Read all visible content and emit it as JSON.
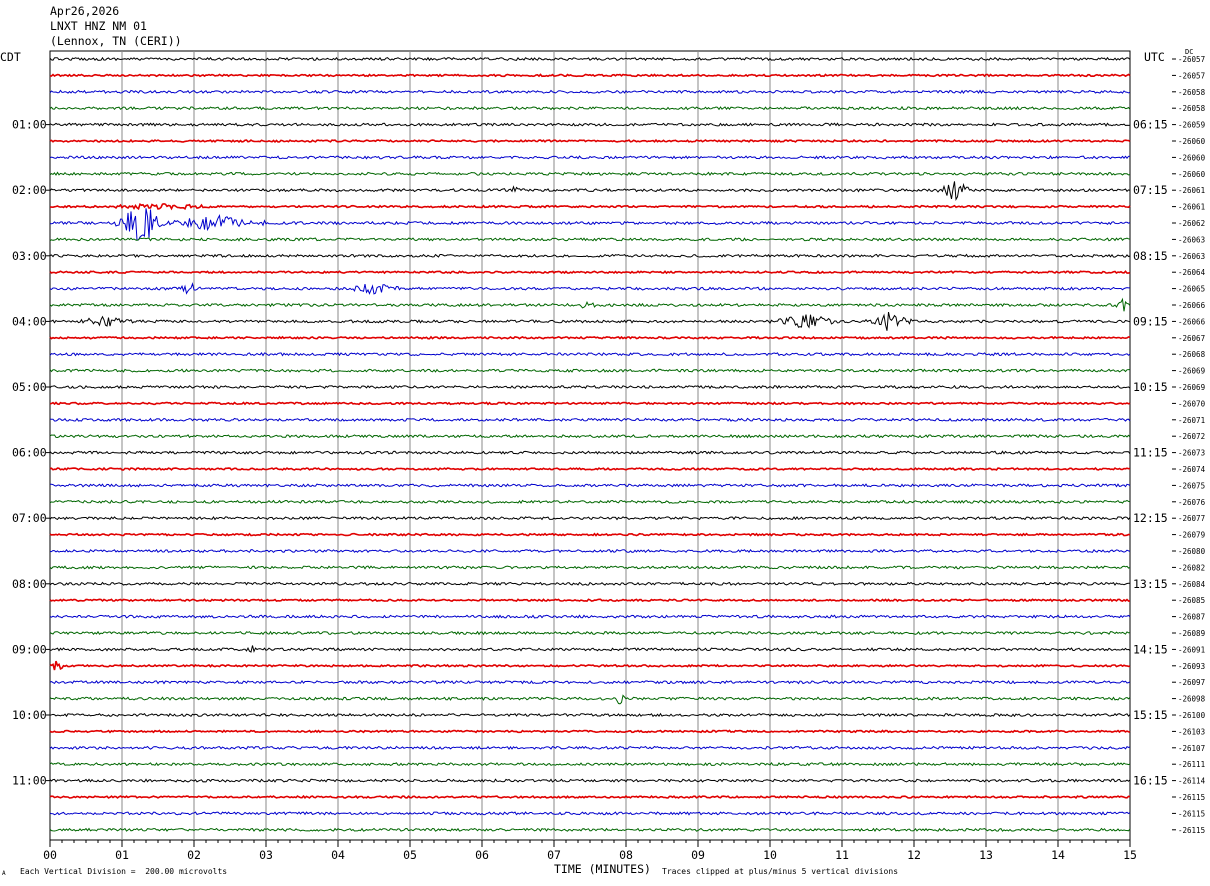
{
  "header": {
    "date": "Apr26,2026",
    "station": "LNXT HNZ NM 01",
    "location": "(Lennox, TN (CERI))"
  },
  "left_axis_label": "CDT",
  "right_axis_label": "UTC",
  "dc_label": "DC",
  "footer": {
    "scale_note": "Each Vertical Division =  200.00 microvolts",
    "clip_note": "Traces clipped at plus/minus 5 vertical divisions",
    "xlabel": "TIME (MINUTES)",
    "corner_mark": "A"
  },
  "colors": {
    "trace_cycle": [
      "#000000",
      "#e00000",
      "#0000cc",
      "#006600"
    ],
    "grid": "#000000",
    "background": "#ffffff"
  },
  "chart_data": {
    "type": "line",
    "title": "LNXT HNZ NM 01",
    "xlabel": "TIME (MINUTES)",
    "xlim": [
      0,
      15
    ],
    "x_ticks": [
      "00",
      "01",
      "02",
      "03",
      "04",
      "05",
      "06",
      "07",
      "08",
      "09",
      "10",
      "11",
      "12",
      "13",
      "14",
      "15"
    ],
    "rows": 48,
    "cdt_labels": [
      {
        "row": 4,
        "text": "01:00"
      },
      {
        "row": 8,
        "text": "02:00"
      },
      {
        "row": 12,
        "text": "03:00"
      },
      {
        "row": 16,
        "text": "04:00"
      },
      {
        "row": 20,
        "text": "05:00"
      },
      {
        "row": 24,
        "text": "06:00"
      },
      {
        "row": 28,
        "text": "07:00"
      },
      {
        "row": 32,
        "text": "08:00"
      },
      {
        "row": 36,
        "text": "09:00"
      },
      {
        "row": 40,
        "text": "10:00"
      },
      {
        "row": 44,
        "text": "11:00"
      }
    ],
    "utc_labels": [
      {
        "row": 4,
        "text": "06:15"
      },
      {
        "row": 8,
        "text": "07:15"
      },
      {
        "row": 12,
        "text": "08:15"
      },
      {
        "row": 16,
        "text": "09:15"
      },
      {
        "row": 20,
        "text": "10:15"
      },
      {
        "row": 24,
        "text": "11:15"
      },
      {
        "row": 28,
        "text": "12:15"
      },
      {
        "row": 32,
        "text": "13:15"
      },
      {
        "row": 36,
        "text": "14:15"
      },
      {
        "row": 40,
        "text": "15:15"
      },
      {
        "row": 44,
        "text": "16:15"
      }
    ],
    "dc_offsets": [
      "-26057",
      "-26057",
      "-26058",
      "-26058",
      "-26059",
      "-26060",
      "-26060",
      "-26060",
      "-26061",
      "-26061",
      "-26062",
      "-26063",
      "-26063",
      "-26064",
      "-26065",
      "-26066",
      "-26066",
      "-26067",
      "-26068",
      "-26069",
      "-26069",
      "-26070",
      "-26071",
      "-26072",
      "-26073",
      "-26074",
      "-26075",
      "-26076",
      "-26077",
      "-26079",
      "-26080",
      "-26082",
      "-26084",
      "-26085",
      "-26087",
      "-26089",
      "-26091",
      "-26093",
      "-26097",
      "-26098",
      "-26100",
      "-26103",
      "-26107",
      "-26111",
      "-26114",
      "-26115",
      "-26115",
      "-26115"
    ],
    "events": [
      {
        "row": 8,
        "start_min": 12.3,
        "end_min": 12.8,
        "amp": 1.4
      },
      {
        "row": 8,
        "start_min": 6.3,
        "end_min": 6.6,
        "amp": 0.5
      },
      {
        "row": 9,
        "start_min": 0.7,
        "end_min": 2.4,
        "amp": 0.4
      },
      {
        "row": 10,
        "start_min": 0.9,
        "end_min": 1.6,
        "amp": 3.0
      },
      {
        "row": 10,
        "start_min": 1.6,
        "end_min": 3.0,
        "amp": 1.2
      },
      {
        "row": 14,
        "start_min": 1.8,
        "end_min": 2.1,
        "amp": 1.0
      },
      {
        "row": 14,
        "start_min": 4.1,
        "end_min": 4.9,
        "amp": 0.8
      },
      {
        "row": 15,
        "start_min": 7.2,
        "end_min": 7.7,
        "amp": 0.4
      },
      {
        "row": 15,
        "start_min": 14.8,
        "end_min": 15.0,
        "amp": 0.8
      },
      {
        "row": 16,
        "start_min": 0.3,
        "end_min": 1.2,
        "amp": 0.6
      },
      {
        "row": 16,
        "start_min": 10.0,
        "end_min": 11.0,
        "amp": 1.0
      },
      {
        "row": 16,
        "start_min": 11.3,
        "end_min": 12.0,
        "amp": 1.1
      },
      {
        "row": 36,
        "start_min": 2.7,
        "end_min": 2.9,
        "amp": 0.6
      },
      {
        "row": 37,
        "start_min": 0.0,
        "end_min": 0.2,
        "amp": 0.8
      },
      {
        "row": 39,
        "start_min": 7.8,
        "end_min": 8.0,
        "amp": 0.9
      }
    ]
  }
}
